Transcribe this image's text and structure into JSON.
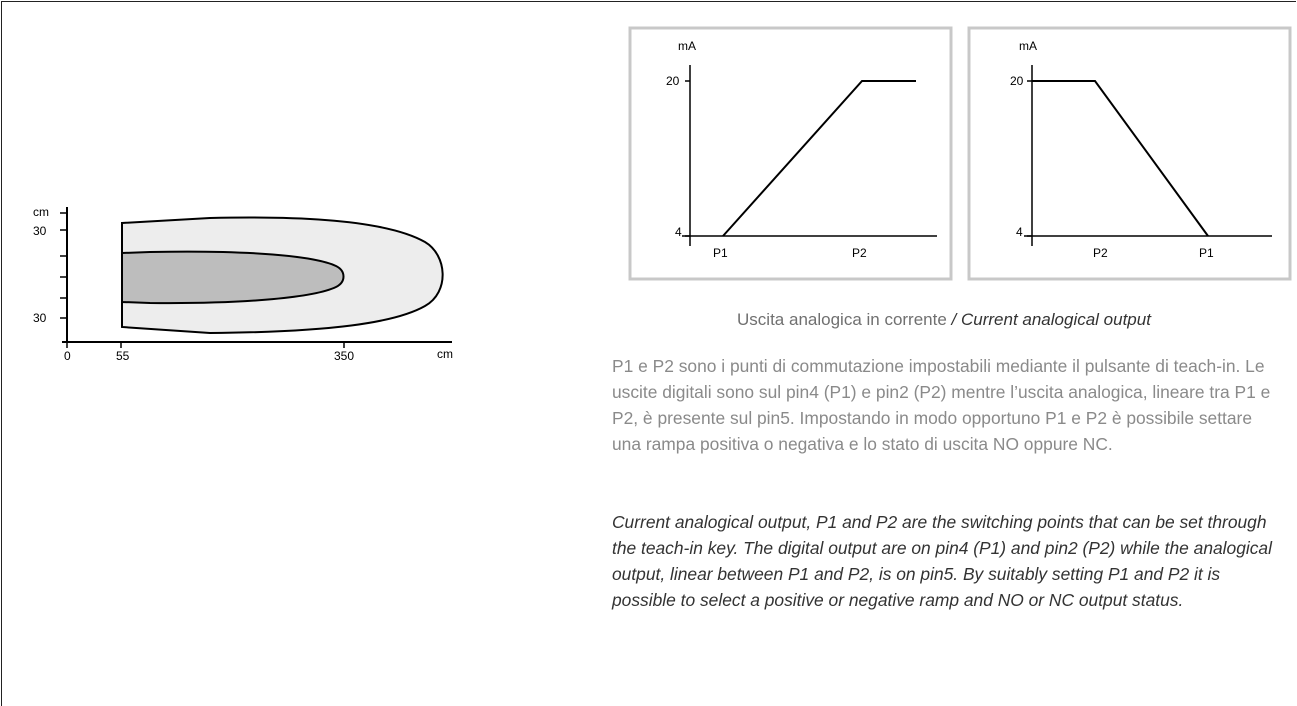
{
  "beam_diagram": {
    "y_unit": "cm",
    "y_ticks": [
      "30",
      "30"
    ],
    "x_unit": "cm",
    "x_ticks": [
      "0",
      "55",
      "350"
    ]
  },
  "charts": [
    {
      "y_unit": "mA",
      "y_ticks": [
        "20",
        "4"
      ],
      "x_ticks": [
        "P1",
        "P2"
      ]
    },
    {
      "y_unit": "mA",
      "y_ticks": [
        "20",
        "4"
      ],
      "x_ticks": [
        "P2",
        "P1"
      ]
    }
  ],
  "chart_data": [
    {
      "type": "line",
      "ylabel": "mA",
      "categories": [
        "P1",
        "P2"
      ],
      "points": [
        [
          "P1",
          4
        ],
        [
          "P2",
          20
        ],
        [
          "after P2",
          20
        ]
      ],
      "ylim": [
        4,
        20
      ]
    },
    {
      "type": "line",
      "ylabel": "mA",
      "categories": [
        "P2",
        "P1"
      ],
      "points": [
        [
          "start",
          20
        ],
        [
          "P2",
          20
        ],
        [
          "P1",
          4
        ]
      ],
      "ylim": [
        4,
        20
      ]
    }
  ],
  "caption": {
    "it": "Uscita analogica in corrente",
    "sep": " / ",
    "en": "Current analogical output"
  },
  "description": {
    "it": "P1 e P2 sono i punti di commutazione impostabili mediante il pulsante di teach-in. Le uscite digitali sono sul pin4 (P1) e pin2 (P2) mentre l’uscita analogica, lineare tra P1 e P2, è presente sul pin5. Impostando in modo opportuno P1 e P2 è possibile settare una rampa positiva o negativa e lo stato di uscita NO oppure NC.",
    "en": "Current analogical output, P1 and P2 are the switching points that can be set through the teach-in key. The digital output are on pin4 (P1) and pin2 (P2) while the analogical output, linear between P1 and P2, is on pin5.  By suitably setting P1 and P2 it is possible to select a positive or negative ramp and NO or NC output status."
  }
}
